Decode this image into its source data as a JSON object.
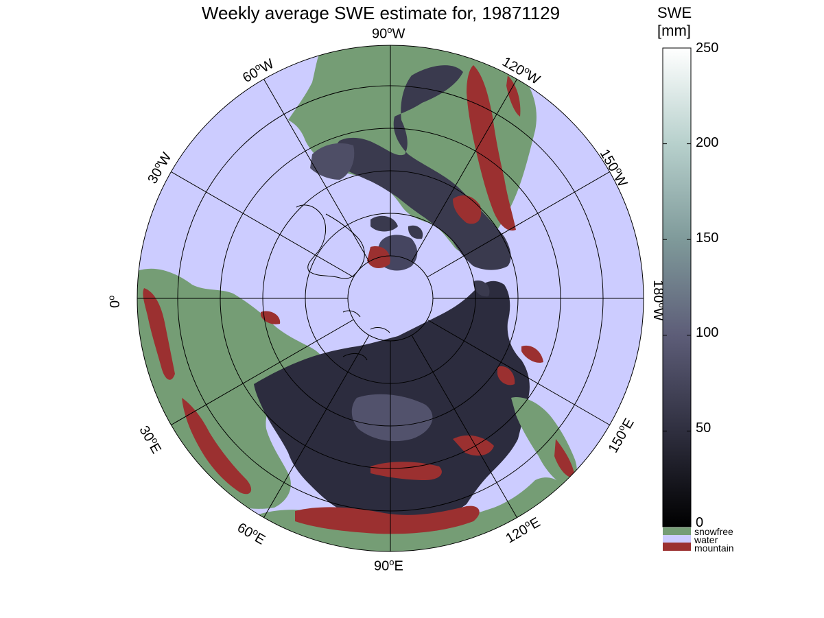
{
  "title": "Weekly average SWE estimate for, 19871129",
  "map": {
    "projection": "north-polar-stereographic",
    "colors": {
      "water": "#ccccff",
      "snowfree": "#759d75",
      "mountain": "#9b3030",
      "snow_low": "#0b0b12",
      "snow_mid": "#5d5d78",
      "snow_high": "#ffffff",
      "grid": "#000000"
    },
    "longitude_labels": [
      {
        "value": "90",
        "hemi": "W"
      },
      {
        "value": "120",
        "hemi": "W"
      },
      {
        "value": "150",
        "hemi": "W"
      },
      {
        "value": "180",
        "hemi": "W"
      },
      {
        "value": "150",
        "hemi": "E"
      },
      {
        "value": "120",
        "hemi": "E"
      },
      {
        "value": "90",
        "hemi": "E"
      },
      {
        "value": "60",
        "hemi": "E"
      },
      {
        "value": "30",
        "hemi": "E"
      },
      {
        "value": "0",
        "hemi": ""
      },
      {
        "value": "30",
        "hemi": "W"
      },
      {
        "value": "60",
        "hemi": "W"
      }
    ]
  },
  "colorbar": {
    "title_line1": "SWE",
    "title_line2": "[mm]",
    "min": 0,
    "max": 250,
    "ticks": [
      "0",
      "50",
      "100",
      "150",
      "200",
      "250"
    ]
  },
  "legend": [
    {
      "label": "snowfree",
      "color": "#759d75"
    },
    {
      "label": "water",
      "color": "#ccccff"
    },
    {
      "label": "mountain",
      "color": "#9b3030"
    }
  ]
}
